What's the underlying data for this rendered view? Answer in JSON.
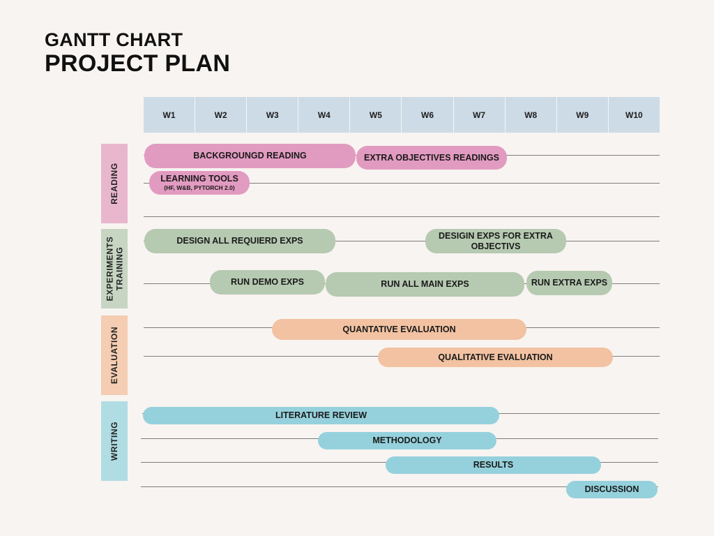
{
  "header": {
    "subtitle": "GANTT CHART",
    "title": "PROJECT PLAN"
  },
  "weeks": [
    "W1",
    "W2",
    "W3",
    "W4",
    "W5",
    "W6",
    "W7",
    "W8",
    "W9",
    "W10"
  ],
  "sections": {
    "reading": {
      "label": "READING",
      "color": "#e9b7cd"
    },
    "experiments": {
      "label_line1": "EXPERIMENTS",
      "label_line2": "TRAINING",
      "color": "#c7d5c3"
    },
    "evaluation": {
      "label": "EVALUATION",
      "color": "#f4cdb2"
    },
    "writing": {
      "label": "WRITING",
      "color": "#b0dde3"
    }
  },
  "tasks": {
    "background_reading": {
      "label": "BACKGROUNGD READING"
    },
    "extra_objectives_readings": {
      "label": "EXTRA OBJECTIVES READINGS"
    },
    "learning_tools": {
      "label": "LEARNING TOOLS",
      "detail": "(HF, W&B, PYTORCH 2.0)"
    },
    "design_required_exps": {
      "label": "DESIGN ALL REQUIERD EXPS"
    },
    "design_extra_exps": {
      "label_line1": "DESIGIN EXPS FOR EXTRA",
      "label_line2": "OBJECTIVS"
    },
    "run_demo_exps": {
      "label": "RUN DEMO EXPS"
    },
    "run_main_exps": {
      "label": "RUN ALL MAIN EXPS"
    },
    "run_extra_exps": {
      "label": "RUN EXTRA EXPS"
    },
    "quantitative_evaluation": {
      "label": "QUANTATIVE EVALUATION"
    },
    "qualitative_evaluation": {
      "label": "QUALITATIVE EVALUATION"
    },
    "literature_review": {
      "label": "LITERATURE REVIEW"
    },
    "methodology": {
      "label": "METHODOLOGY"
    },
    "results": {
      "label": "RESULTS"
    },
    "discussion": {
      "label": "DISCUSSION"
    }
  }
}
